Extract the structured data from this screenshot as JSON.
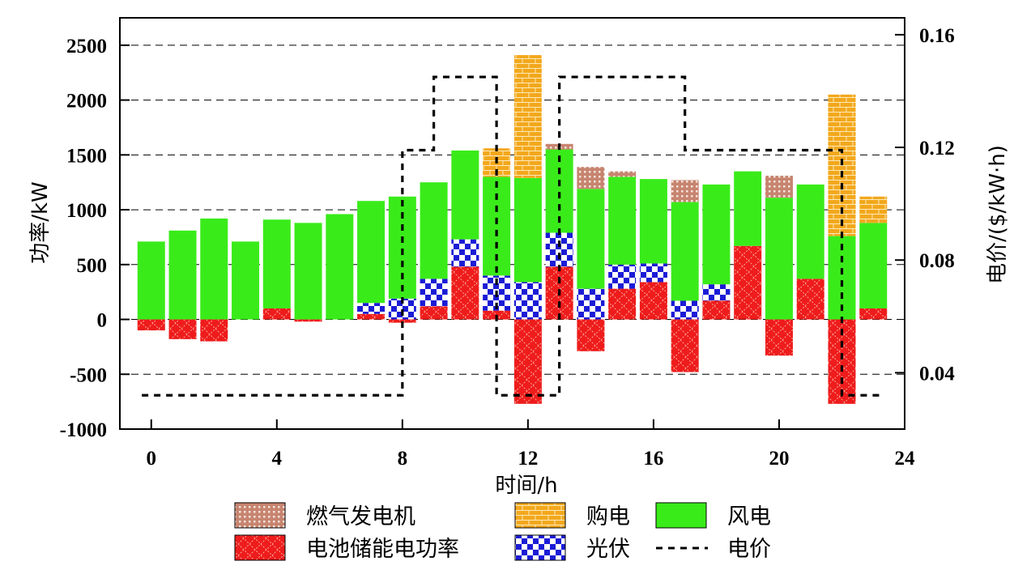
{
  "chart_data": {
    "type": "bar",
    "title": "",
    "xlabel": "时间/h",
    "ylabel": "功率/kW",
    "y2label": "电价/($/kW·h)",
    "x": [
      0,
      1,
      2,
      3,
      4,
      5,
      6,
      7,
      8,
      9,
      10,
      11,
      12,
      13,
      14,
      15,
      16,
      17,
      18,
      19,
      20,
      21,
      22,
      23
    ],
    "xlim": [
      -1,
      24
    ],
    "xticks": [
      0,
      4,
      8,
      12,
      16,
      20,
      24
    ],
    "ylim": [
      -1000,
      2750
    ],
    "yticks": [
      -1000,
      -500,
      0,
      500,
      1000,
      1500,
      2000,
      2500
    ],
    "y2lim": [
      0.02,
      0.166
    ],
    "y2ticks": [
      0.04,
      0.08,
      0.12,
      0.16
    ],
    "y2ticklabels": [
      "0.04",
      "0.08",
      "0.12",
      "0.16"
    ],
    "grid": true,
    "legend_position": "bottom",
    "series": [
      {
        "name": "电池储能电功率",
        "key": "battery",
        "color": "#ee1c1c",
        "pattern": "cross",
        "values": [
          -100,
          -180,
          -200,
          0,
          100,
          -20,
          0,
          50,
          -30,
          120,
          480,
          80,
          -770,
          480,
          -290,
          280,
          340,
          -480,
          170,
          670,
          -330,
          370,
          -770,
          100
        ]
      },
      {
        "name": "光伏",
        "key": "pv",
        "color": "#1b1bd6",
        "pattern": "checker",
        "values": [
          0,
          0,
          0,
          0,
          0,
          0,
          0,
          100,
          190,
          250,
          250,
          320,
          340,
          310,
          280,
          220,
          170,
          170,
          150,
          0,
          0,
          0,
          0,
          0
        ]
      },
      {
        "name": "风电",
        "key": "wind",
        "color": "#3aeb1a",
        "pattern": "solid",
        "values": [
          710,
          810,
          920,
          710,
          810,
          880,
          960,
          930,
          930,
          880,
          810,
          900,
          950,
          760,
          910,
          800,
          770,
          900,
          910,
          680,
          1110,
          860,
          760,
          780
        ]
      },
      {
        "name": "燃气发电机",
        "key": "gas",
        "color": "#c7846f",
        "pattern": "dots",
        "values": [
          0,
          0,
          0,
          0,
          0,
          0,
          0,
          0,
          0,
          0,
          0,
          0,
          0,
          50,
          200,
          50,
          0,
          200,
          0,
          0,
          200,
          0,
          0,
          0
        ]
      },
      {
        "name": "购电",
        "key": "grid",
        "color": "#f2a81d",
        "pattern": "brick",
        "values": [
          0,
          0,
          0,
          0,
          0,
          0,
          0,
          0,
          0,
          0,
          0,
          260,
          1120,
          0,
          0,
          0,
          0,
          0,
          0,
          0,
          0,
          0,
          1290,
          240
        ]
      }
    ],
    "price_series": {
      "name": "电价",
      "steps": [
        [
          -0.3,
          0.032
        ],
        [
          8,
          0.119
        ],
        [
          9,
          0.145
        ],
        [
          11,
          0.032
        ],
        [
          13,
          0.145
        ],
        [
          17,
          0.119
        ],
        [
          22,
          0.032
        ],
        [
          23.3,
          0.032
        ]
      ]
    }
  }
}
